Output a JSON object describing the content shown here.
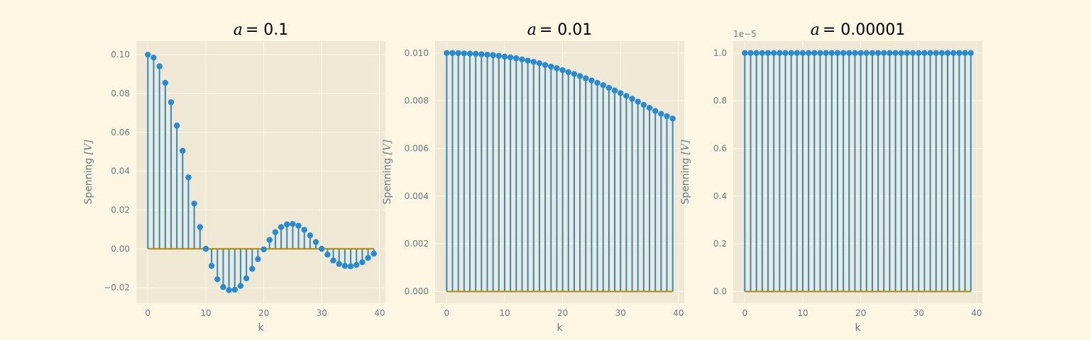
{
  "colors": {
    "figure_bg": "#fdf6e3",
    "axes_bg": "#eee8d5",
    "grid": "#fdf6e3",
    "stem": "#268bd2",
    "baseline": "#b58900",
    "text": "#657b83"
  },
  "chart_data": [
    {
      "type": "stem",
      "title_var": "a",
      "title_value": "= 0.1",
      "xlabel": "k",
      "ylabel": "Spenning [V]",
      "ylabel_main": "Spenning ",
      "ylabel_unit": "[V]",
      "xlim": [
        -2,
        41
      ],
      "ylim": [
        -0.028,
        0.107
      ],
      "xticks": [
        0,
        10,
        20,
        30,
        40
      ],
      "yticks": [
        -0.02,
        0.0,
        0.02,
        0.04,
        0.06,
        0.08,
        0.1
      ],
      "ytick_labels": [
        "−0.02",
        "0.00",
        "0.02",
        "0.04",
        "0.06",
        "0.08",
        "0.10"
      ],
      "offset_text": "",
      "baseline": 0,
      "x": [
        0,
        1,
        2,
        3,
        4,
        5,
        6,
        7,
        8,
        9,
        10,
        11,
        12,
        13,
        14,
        15,
        16,
        17,
        18,
        19,
        20,
        21,
        22,
        23,
        24,
        25,
        26,
        27,
        28,
        29,
        30,
        31,
        32,
        33,
        34,
        35,
        36,
        37,
        38,
        39
      ],
      "y": [
        0.1,
        0.0985,
        0.094,
        0.0855,
        0.0755,
        0.0635,
        0.0505,
        0.0368,
        0.0233,
        0.0112,
        0.0,
        -0.0088,
        -0.0157,
        -0.0197,
        -0.0213,
        -0.0211,
        -0.0191,
        -0.0152,
        -0.0103,
        -0.0053,
        -0.0003,
        0.0046,
        0.0086,
        0.0112,
        0.0126,
        0.0128,
        0.0119,
        0.0098,
        0.0069,
        0.0035,
        0.0,
        -0.003,
        -0.006,
        -0.0078,
        -0.0088,
        -0.009,
        -0.0083,
        -0.0069,
        -0.0047,
        -0.0025
      ]
    },
    {
      "type": "stem",
      "title_var": "a",
      "title_value": "= 0.01",
      "xlabel": "k",
      "ylabel": "Spenning [V]",
      "ylabel_main": "Spenning ",
      "ylabel_unit": "[V]",
      "xlim": [
        -2,
        41
      ],
      "ylim": [
        -0.00049,
        0.0105
      ],
      "xticks": [
        0,
        10,
        20,
        30,
        40
      ],
      "yticks": [
        0.0,
        0.002,
        0.004,
        0.006,
        0.008,
        0.01
      ],
      "ytick_labels": [
        "0.000",
        "0.002",
        "0.004",
        "0.006",
        "0.008",
        "0.010"
      ],
      "offset_text": "",
      "baseline": 0,
      "x": [
        0,
        1,
        2,
        3,
        4,
        5,
        6,
        7,
        8,
        9,
        10,
        11,
        12,
        13,
        14,
        15,
        16,
        17,
        18,
        19,
        20,
        21,
        22,
        23,
        24,
        25,
        26,
        27,
        28,
        29,
        30,
        31,
        32,
        33,
        34,
        35,
        36,
        37,
        38,
        39
      ],
      "y": [
        0.01,
        0.01,
        0.009995,
        0.009985,
        0.009975,
        0.009965,
        0.00995,
        0.00993,
        0.00991,
        0.00988,
        0.00985,
        0.00982,
        0.00978,
        0.00973,
        0.00968,
        0.00963,
        0.00957,
        0.0095,
        0.00943,
        0.00936,
        0.00928,
        0.0092,
        0.00912,
        0.00903,
        0.00894,
        0.00885,
        0.00875,
        0.00865,
        0.00854,
        0.00843,
        0.00832,
        0.0082,
        0.00808,
        0.00796,
        0.00783,
        0.0077,
        0.00757,
        0.00745,
        0.00735,
        0.00725
      ]
    },
    {
      "type": "stem",
      "title_var": "a",
      "title_value": "= 0.00001",
      "xlabel": "k",
      "ylabel": "Spenning [V]",
      "ylabel_main": "Spenning ",
      "ylabel_unit": "[V]",
      "xlim": [
        -2,
        41
      ],
      "ylim": [
        -0.049,
        1.05
      ],
      "xticks": [
        0,
        10,
        20,
        30,
        40
      ],
      "yticks": [
        0.0,
        0.2,
        0.4,
        0.6,
        0.8,
        1.0
      ],
      "ytick_labels": [
        "0.0",
        "0.2",
        "0.4",
        "0.6",
        "0.8",
        "1.0"
      ],
      "offset_text": "1e−5",
      "baseline": 0,
      "x": [
        0,
        1,
        2,
        3,
        4,
        5,
        6,
        7,
        8,
        9,
        10,
        11,
        12,
        13,
        14,
        15,
        16,
        17,
        18,
        19,
        20,
        21,
        22,
        23,
        24,
        25,
        26,
        27,
        28,
        29,
        30,
        31,
        32,
        33,
        34,
        35,
        36,
        37,
        38,
        39
      ],
      "y": [
        1.0,
        1.0,
        1.0,
        1.0,
        1.0,
        1.0,
        1.0,
        1.0,
        1.0,
        1.0,
        1.0,
        1.0,
        1.0,
        1.0,
        1.0,
        1.0,
        1.0,
        1.0,
        1.0,
        1.0,
        1.0,
        1.0,
        1.0,
        1.0,
        1.0,
        1.0,
        1.0,
        1.0,
        1.0,
        1.0,
        1.0,
        1.0,
        1.0,
        1.0,
        1.0,
        1.0,
        1.0,
        1.0,
        1.0,
        1.0
      ]
    }
  ]
}
